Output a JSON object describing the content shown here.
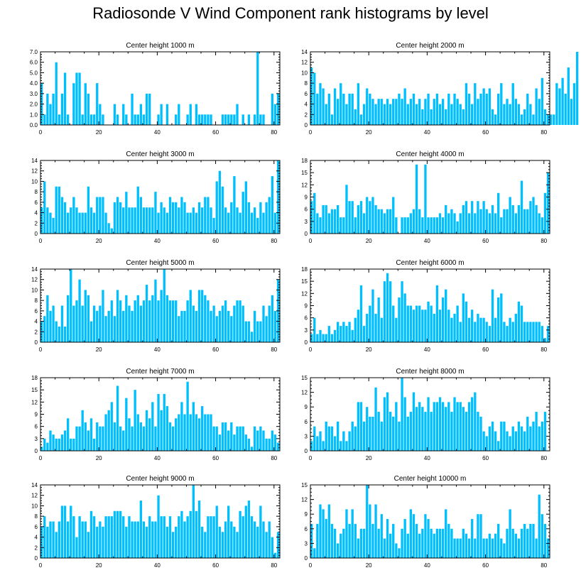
{
  "title": "Radiosonde V Wind Component rank histograms by level",
  "bar_color": "#00BFFF",
  "chart_data": [
    {
      "type": "bar",
      "title": "Center height 1000 m",
      "xlim": [
        0,
        82
      ],
      "ylim": [
        0,
        7
      ],
      "yticks": [
        0,
        1,
        2,
        3,
        4,
        5,
        6,
        7
      ],
      "ytick_labels": [
        "0.0",
        "1.0",
        "2.0",
        "3.0",
        "4.0",
        "5.0",
        "6.0",
        "7.0"
      ],
      "xticks": [
        0,
        20,
        40,
        60,
        80
      ],
      "values": [
        4,
        1,
        3,
        2,
        3,
        6,
        1,
        3,
        5,
        1,
        0,
        4,
        5,
        5,
        1,
        4,
        3,
        1,
        1,
        4,
        2,
        1,
        0,
        0,
        0,
        2,
        1,
        0,
        2,
        1,
        0,
        3,
        1,
        1,
        2,
        1,
        3,
        3,
        0,
        0,
        1,
        2,
        0,
        2,
        0,
        0,
        1,
        2,
        0,
        0,
        1,
        2,
        0,
        2,
        1,
        1,
        1,
        1,
        1,
        0,
        0,
        0,
        1,
        1,
        1,
        1,
        1,
        2,
        0,
        1,
        0,
        1,
        0,
        1,
        7,
        1,
        1,
        0,
        0,
        3,
        2,
        3
      ]
    },
    {
      "type": "bar",
      "title": "Center height 2000 m",
      "xlim": [
        0,
        82
      ],
      "ylim": [
        0,
        14
      ],
      "yticks": [
        0,
        2,
        4,
        6,
        8,
        10,
        12,
        14
      ],
      "ytick_labels": [
        "0",
        "2",
        "4",
        "6",
        "8",
        "10",
        "12",
        "14"
      ],
      "xticks": [
        0,
        20,
        40,
        60,
        80
      ],
      "values": [
        11,
        10,
        6,
        8,
        7,
        4,
        6,
        2,
        7,
        5,
        8,
        6,
        4,
        6,
        6,
        3,
        8,
        2,
        4,
        7,
        6,
        5,
        4,
        5,
        5,
        4,
        5,
        4,
        5,
        5,
        6,
        5,
        7,
        4,
        5,
        6,
        4,
        5,
        3,
        5,
        6,
        3,
        5,
        6,
        4,
        5,
        3,
        6,
        4,
        6,
        5,
        4,
        3,
        8,
        6,
        4,
        8,
        5,
        6,
        7,
        6,
        7,
        3,
        2,
        6,
        8,
        4,
        5,
        4,
        8,
        5,
        4,
        2,
        3,
        6,
        4,
        2,
        7,
        5,
        9,
        3,
        2,
        2,
        2,
        8,
        7,
        9,
        6,
        11,
        5,
        8,
        14
      ]
    },
    {
      "type": "bar",
      "title": "Center height 3000 m",
      "xlim": [
        0,
        82
      ],
      "ylim": [
        0,
        14
      ],
      "yticks": [
        0,
        2,
        4,
        6,
        8,
        10,
        12,
        14
      ],
      "ytick_labels": [
        "0",
        "2",
        "4",
        "6",
        "8",
        "10",
        "12",
        "14"
      ],
      "xticks": [
        0,
        20,
        40,
        60,
        80
      ],
      "values": [
        5,
        10,
        5,
        4,
        3,
        9,
        9,
        7,
        6,
        4,
        5,
        7,
        5,
        4,
        4,
        4,
        9,
        5,
        4,
        7,
        7,
        7,
        4,
        2,
        1,
        6,
        7,
        6,
        5,
        8,
        5,
        5,
        5,
        9,
        7,
        5,
        5,
        5,
        5,
        8,
        4,
        6,
        5,
        4,
        7,
        6,
        6,
        5,
        7,
        6,
        4,
        4,
        5,
        4,
        6,
        5,
        7,
        7,
        5,
        3,
        10,
        12,
        9,
        5,
        4,
        6,
        11,
        5,
        4,
        8,
        10,
        6,
        4,
        5,
        3,
        6,
        4,
        6,
        7,
        11,
        4,
        14
      ]
    },
    {
      "type": "bar",
      "title": "Center height 4000 m",
      "xlim": [
        0,
        82
      ],
      "ylim": [
        0,
        18
      ],
      "yticks": [
        0,
        3,
        6,
        9,
        12,
        15,
        18
      ],
      "ytick_labels": [
        "0",
        "3",
        "6",
        "9",
        "12",
        "15",
        "18"
      ],
      "xticks": [
        0,
        20,
        40,
        60,
        80
      ],
      "values": [
        8,
        10,
        5,
        4,
        7,
        7,
        5,
        6,
        6,
        7,
        4,
        4,
        12,
        8,
        8,
        4,
        7,
        8,
        5,
        9,
        8,
        9,
        7,
        6,
        6,
        5,
        6,
        6,
        9,
        4,
        0,
        4,
        4,
        4,
        5,
        6,
        17,
        6,
        4,
        17,
        4,
        4,
        4,
        4,
        5,
        4,
        7,
        5,
        6,
        5,
        3,
        5,
        7,
        8,
        5,
        8,
        5,
        8,
        6,
        8,
        6,
        5,
        7,
        5,
        10,
        4,
        6,
        6,
        9,
        7,
        5,
        7,
        13,
        6,
        6,
        8,
        9,
        7,
        5,
        4,
        10,
        15
      ]
    },
    {
      "type": "bar",
      "title": "Center height 5000 m",
      "xlim": [
        0,
        82
      ],
      "ylim": [
        0,
        14
      ],
      "yticks": [
        0,
        2,
        4,
        6,
        8,
        10,
        12,
        14
      ],
      "ytick_labels": [
        "0",
        "2",
        "4",
        "6",
        "8",
        "10",
        "12",
        "14"
      ],
      "xticks": [
        0,
        20,
        40,
        60,
        80
      ],
      "values": [
        4,
        5,
        9,
        6,
        7,
        4,
        3,
        7,
        3,
        9,
        14,
        7,
        8,
        12,
        7,
        10,
        9,
        4,
        7,
        6,
        7,
        10,
        5,
        6,
        8,
        5,
        10,
        8,
        6,
        9,
        7,
        6,
        8,
        9,
        7,
        8,
        11,
        8,
        9,
        12,
        8,
        10,
        14,
        9,
        8,
        8,
        8,
        5,
        6,
        6,
        8,
        10,
        7,
        6,
        10,
        10,
        9,
        8,
        6,
        7,
        5,
        6,
        7,
        8,
        6,
        5,
        7,
        8,
        8,
        7,
        4,
        4,
        2,
        6,
        4,
        4,
        7,
        5,
        7,
        9,
        6,
        12
      ]
    },
    {
      "type": "bar",
      "title": "Center height 6000 m",
      "xlim": [
        0,
        82
      ],
      "ylim": [
        0,
        18
      ],
      "yticks": [
        0,
        3,
        6,
        9,
        12,
        15,
        18
      ],
      "ytick_labels": [
        "0",
        "3",
        "6",
        "9",
        "12",
        "15",
        "18"
      ],
      "xticks": [
        0,
        20,
        40,
        60,
        80
      ],
      "values": [
        2,
        6,
        2,
        3,
        2,
        2,
        4,
        2,
        3,
        5,
        4,
        5,
        4,
        5,
        3,
        6,
        8,
        14,
        4,
        7,
        9,
        13,
        7,
        11,
        6,
        15,
        17,
        15,
        9,
        6,
        11,
        15,
        12,
        9,
        9,
        8,
        9,
        9,
        8,
        8,
        10,
        9,
        7,
        14,
        8,
        11,
        13,
        8,
        6,
        7,
        9,
        5,
        12,
        10,
        6,
        8,
        5,
        7,
        6,
        6,
        5,
        4,
        13,
        6,
        11,
        12,
        5,
        4,
        6,
        5,
        7,
        10,
        9,
        5,
        5,
        5,
        5,
        5,
        5,
        4,
        1,
        4
      ]
    },
    {
      "type": "bar",
      "title": "Center height 7000 m",
      "xlim": [
        0,
        82
      ],
      "ylim": [
        0,
        18
      ],
      "yticks": [
        0,
        3,
        6,
        9,
        12,
        15,
        18
      ],
      "ytick_labels": [
        "0",
        "3",
        "6",
        "9",
        "12",
        "15",
        "18"
      ],
      "xticks": [
        0,
        20,
        40,
        60,
        80
      ],
      "values": [
        1,
        3,
        2,
        5,
        4,
        3,
        3,
        4,
        5,
        8,
        3,
        3,
        6,
        6,
        10,
        7,
        5,
        8,
        3,
        7,
        6,
        6,
        9,
        10,
        12,
        7,
        16,
        6,
        5,
        13,
        8,
        6,
        15,
        9,
        7,
        6,
        10,
        8,
        12,
        6,
        14,
        10,
        14,
        11,
        7,
        6,
        8,
        9,
        12,
        9,
        17,
        9,
        12,
        9,
        8,
        11,
        9,
        9,
        9,
        6,
        6,
        4,
        7,
        7,
        5,
        7,
        4,
        6,
        6,
        6,
        4,
        3,
        1,
        6,
        5,
        6,
        5,
        3,
        3,
        5,
        4,
        2
      ]
    },
    {
      "type": "bar",
      "title": "Center height 8000 m",
      "xlim": [
        0,
        82
      ],
      "ylim": [
        0,
        15
      ],
      "yticks": [
        0,
        3,
        6,
        9,
        12,
        15
      ],
      "ytick_labels": [
        "0",
        "3",
        "6",
        "9",
        "12",
        "15"
      ],
      "xticks": [
        0,
        20,
        40,
        60,
        80
      ],
      "values": [
        2,
        5,
        3,
        4,
        2,
        6,
        5,
        5,
        3,
        6,
        2,
        4,
        2,
        4,
        6,
        5,
        10,
        10,
        6,
        9,
        7,
        7,
        13,
        8,
        6,
        11,
        12,
        8,
        7,
        10,
        6,
        15,
        11,
        7,
        8,
        12,
        9,
        10,
        9,
        8,
        11,
        8,
        10,
        10,
        11,
        10,
        9,
        10,
        8,
        11,
        10,
        10,
        9,
        8,
        10,
        11,
        12,
        8,
        7,
        4,
        3,
        5,
        6,
        4,
        2,
        6,
        6,
        4,
        3,
        5,
        4,
        6,
        5,
        4,
        7,
        5,
        6,
        8,
        5,
        6,
        8
      ]
    },
    {
      "type": "bar",
      "title": "Center height 9000 m",
      "xlim": [
        0,
        82
      ],
      "ylim": [
        0,
        14
      ],
      "yticks": [
        0,
        2,
        4,
        6,
        8,
        10,
        12,
        14
      ],
      "ytick_labels": [
        "0",
        "2",
        "4",
        "6",
        "8",
        "10",
        "12",
        "14"
      ],
      "xticks": [
        0,
        20,
        40,
        60,
        80
      ],
      "values": [
        6,
        8,
        6,
        7,
        7,
        5,
        7,
        10,
        10,
        7,
        10,
        8,
        4,
        8,
        7,
        7,
        5,
        9,
        8,
        6,
        7,
        6,
        8,
        8,
        8,
        9,
        9,
        9,
        8,
        6,
        8,
        7,
        7,
        7,
        11,
        7,
        6,
        8,
        7,
        7,
        12,
        8,
        8,
        6,
        8,
        5,
        6,
        8,
        9,
        7,
        8,
        9,
        14,
        9,
        11,
        6,
        5,
        8,
        8,
        8,
        10,
        6,
        5,
        7,
        10,
        7,
        6,
        5,
        9,
        8,
        10,
        11,
        8,
        7,
        6,
        10,
        7,
        5,
        7,
        4,
        1,
        5
      ]
    },
    {
      "type": "bar",
      "title": "Center height 10000 m",
      "xlim": [
        0,
        82
      ],
      "ylim": [
        0,
        15
      ],
      "yticks": [
        0,
        3,
        6,
        9,
        12,
        15
      ],
      "ytick_labels": [
        "0",
        "3",
        "6",
        "9",
        "12",
        "15"
      ],
      "xticks": [
        0,
        20,
        40,
        60,
        80
      ],
      "values": [
        7,
        2,
        7,
        11,
        10,
        8,
        11,
        7,
        6,
        3,
        5,
        6,
        10,
        7,
        10,
        7,
        4,
        6,
        6,
        15,
        11,
        7,
        11,
        6,
        9,
        4,
        8,
        5,
        7,
        3,
        2,
        6,
        8,
        5,
        10,
        9,
        7,
        5,
        6,
        9,
        8,
        6,
        5,
        6,
        6,
        6,
        10,
        7,
        6,
        4,
        4,
        4,
        6,
        5,
        4,
        8,
        4,
        9,
        9,
        4,
        4,
        5,
        4,
        5,
        7,
        4,
        3,
        6,
        10,
        6,
        5,
        4,
        6,
        7,
        6,
        7,
        7,
        4,
        13,
        9,
        7,
        4
      ]
    }
  ]
}
